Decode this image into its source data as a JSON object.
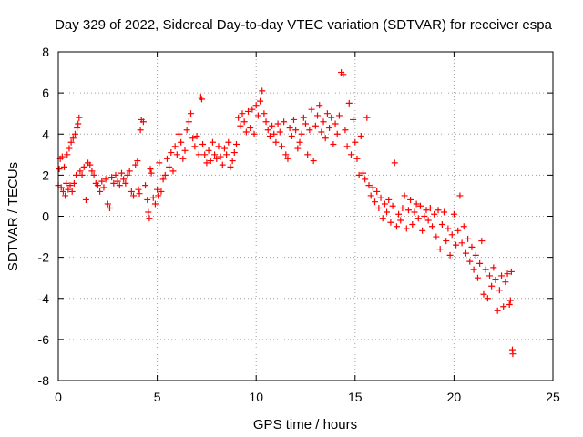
{
  "chart_data": {
    "type": "scatter",
    "title": "Day 329 of 2022, Sidereal Day-to-day VTEC variation (SDTVAR) for receiver espa",
    "xlabel": "GPS time / hours",
    "ylabel": "SDTVAR / TECUs",
    "xlim": [
      0,
      25
    ],
    "ylim": [
      -8,
      8
    ],
    "xticks": [
      "0",
      "5",
      "10",
      "15",
      "20",
      "25"
    ],
    "yticks": [
      "-8",
      "-6",
      "-4",
      "-2",
      "0",
      "2",
      "4",
      "6",
      "8"
    ],
    "grid": true,
    "marker": "plus",
    "color": "#ff0000",
    "series": [
      {
        "name": "SDTVAR",
        "points": [
          [
            0.0,
            1.5
          ],
          [
            0.05,
            2.3
          ],
          [
            0.1,
            2.8
          ],
          [
            0.15,
            1.4
          ],
          [
            0.2,
            2.9
          ],
          [
            0.25,
            1.2
          ],
          [
            0.3,
            2.4
          ],
          [
            0.35,
            1.0
          ],
          [
            0.4,
            1.6
          ],
          [
            0.45,
            3.0
          ],
          [
            0.5,
            1.3
          ],
          [
            0.55,
            3.3
          ],
          [
            0.6,
            1.5
          ],
          [
            0.65,
            3.6
          ],
          [
            0.7,
            1.2
          ],
          [
            0.75,
            3.8
          ],
          [
            0.8,
            1.6
          ],
          [
            0.85,
            4.0
          ],
          [
            0.9,
            2.0
          ],
          [
            0.95,
            4.3
          ],
          [
            1.0,
            4.5
          ],
          [
            1.05,
            4.8
          ],
          [
            1.1,
            2.2
          ],
          [
            1.2,
            2.0
          ],
          [
            1.3,
            2.4
          ],
          [
            1.4,
            0.8
          ],
          [
            1.5,
            2.6
          ],
          [
            1.6,
            2.5
          ],
          [
            1.7,
            2.2
          ],
          [
            1.8,
            2.0
          ],
          [
            1.9,
            1.6
          ],
          [
            2.0,
            1.5
          ],
          [
            2.1,
            1.2
          ],
          [
            2.2,
            1.7
          ],
          [
            2.3,
            1.4
          ],
          [
            2.4,
            1.8
          ],
          [
            2.5,
            0.6
          ],
          [
            2.6,
            0.4
          ],
          [
            2.7,
            1.9
          ],
          [
            2.8,
            1.6
          ],
          [
            2.9,
            2.0
          ],
          [
            3.0,
            1.7
          ],
          [
            3.1,
            1.5
          ],
          [
            3.2,
            2.1
          ],
          [
            3.3,
            1.8
          ],
          [
            3.4,
            1.6
          ],
          [
            3.5,
            2.0
          ],
          [
            3.6,
            2.2
          ],
          [
            3.7,
            1.2
          ],
          [
            3.8,
            1.0
          ],
          [
            3.9,
            2.5
          ],
          [
            4.0,
            2.7
          ],
          [
            4.05,
            1.3
          ],
          [
            4.1,
            1.1
          ],
          [
            4.15,
            4.2
          ],
          [
            4.2,
            4.7
          ],
          [
            4.3,
            4.6
          ],
          [
            4.4,
            1.5
          ],
          [
            4.5,
            0.8
          ],
          [
            4.55,
            0.2
          ],
          [
            4.6,
            -0.1
          ],
          [
            4.65,
            2.3
          ],
          [
            4.7,
            2.1
          ],
          [
            4.8,
            0.9
          ],
          [
            4.9,
            0.6
          ],
          [
            5.0,
            1.3
          ],
          [
            5.05,
            1.0
          ],
          [
            5.1,
            2.6
          ],
          [
            5.2,
            1.2
          ],
          [
            5.3,
            1.8
          ],
          [
            5.4,
            2.0
          ],
          [
            5.5,
            2.8
          ],
          [
            5.6,
            2.4
          ],
          [
            5.7,
            3.1
          ],
          [
            5.8,
            2.2
          ],
          [
            5.9,
            3.4
          ],
          [
            6.0,
            3.0
          ],
          [
            6.1,
            4.0
          ],
          [
            6.2,
            3.6
          ],
          [
            6.3,
            2.8
          ],
          [
            6.4,
            3.2
          ],
          [
            6.5,
            4.2
          ],
          [
            6.6,
            4.6
          ],
          [
            6.7,
            5.0
          ],
          [
            6.8,
            3.8
          ],
          [
            6.9,
            3.4
          ],
          [
            7.0,
            3.9
          ],
          [
            7.1,
            3.0
          ],
          [
            7.2,
            5.8
          ],
          [
            7.25,
            5.7
          ],
          [
            7.3,
            3.5
          ],
          [
            7.4,
            3.0
          ],
          [
            7.5,
            2.6
          ],
          [
            7.6,
            3.2
          ],
          [
            7.7,
            2.7
          ],
          [
            7.8,
            3.6
          ],
          [
            7.9,
            3.0
          ],
          [
            8.0,
            2.8
          ],
          [
            8.1,
            3.4
          ],
          [
            8.2,
            2.9
          ],
          [
            8.3,
            2.5
          ],
          [
            8.4,
            3.3
          ],
          [
            8.5,
            3.0
          ],
          [
            8.6,
            3.6
          ],
          [
            8.7,
            2.4
          ],
          [
            8.8,
            2.7
          ],
          [
            8.9,
            3.1
          ],
          [
            9.0,
            3.5
          ],
          [
            9.1,
            4.8
          ],
          [
            9.2,
            4.4
          ],
          [
            9.3,
            5.0
          ],
          [
            9.4,
            4.6
          ],
          [
            9.5,
            4.1
          ],
          [
            9.6,
            5.1
          ],
          [
            9.7,
            4.3
          ],
          [
            9.8,
            5.2
          ],
          [
            9.9,
            4.0
          ],
          [
            10.0,
            5.4
          ],
          [
            10.1,
            4.9
          ],
          [
            10.2,
            5.6
          ],
          [
            10.3,
            6.1
          ],
          [
            10.4,
            5.0
          ],
          [
            10.5,
            4.6
          ],
          [
            10.6,
            4.2
          ],
          [
            10.7,
            3.9
          ],
          [
            10.8,
            4.4
          ],
          [
            10.9,
            4.0
          ],
          [
            11.0,
            3.6
          ],
          [
            11.1,
            4.5
          ],
          [
            11.2,
            4.1
          ],
          [
            11.3,
            3.4
          ],
          [
            11.4,
            4.6
          ],
          [
            11.5,
            3.0
          ],
          [
            11.6,
            2.8
          ],
          [
            11.7,
            4.3
          ],
          [
            11.8,
            3.9
          ],
          [
            11.9,
            4.7
          ],
          [
            12.0,
            4.2
          ],
          [
            12.1,
            3.3
          ],
          [
            12.2,
            3.6
          ],
          [
            12.3,
            4.0
          ],
          [
            12.4,
            4.8
          ],
          [
            12.5,
            4.5
          ],
          [
            12.6,
            3.0
          ],
          [
            12.7,
            4.2
          ],
          [
            12.8,
            5.2
          ],
          [
            12.9,
            2.7
          ],
          [
            13.0,
            4.4
          ],
          [
            13.1,
            4.9
          ],
          [
            13.2,
            5.4
          ],
          [
            13.3,
            4.1
          ],
          [
            13.4,
            4.6
          ],
          [
            13.5,
            3.8
          ],
          [
            13.6,
            5.0
          ],
          [
            13.7,
            4.3
          ],
          [
            13.8,
            4.8
          ],
          [
            13.9,
            3.5
          ],
          [
            14.0,
            4.5
          ],
          [
            14.1,
            4.0
          ],
          [
            14.2,
            4.9
          ],
          [
            14.3,
            7.0
          ],
          [
            14.4,
            6.9
          ],
          [
            14.5,
            4.2
          ],
          [
            14.6,
            3.4
          ],
          [
            14.7,
            5.5
          ],
          [
            14.8,
            3.0
          ],
          [
            14.9,
            4.7
          ],
          [
            15.0,
            3.6
          ],
          [
            15.1,
            2.8
          ],
          [
            15.2,
            2.0
          ],
          [
            15.3,
            3.9
          ],
          [
            15.4,
            2.1
          ],
          [
            15.5,
            1.8
          ],
          [
            15.6,
            4.8
          ],
          [
            15.7,
            1.5
          ],
          [
            15.8,
            1.0
          ],
          [
            15.9,
            1.4
          ],
          [
            16.0,
            0.7
          ],
          [
            16.1,
            1.2
          ],
          [
            16.2,
            0.4
          ],
          [
            16.3,
            0.9
          ],
          [
            16.4,
            -0.1
          ],
          [
            16.5,
            0.6
          ],
          [
            16.6,
            0.2
          ],
          [
            16.7,
            0.8
          ],
          [
            16.8,
            -0.3
          ],
          [
            16.9,
            0.5
          ],
          [
            17.0,
            2.6
          ],
          [
            17.1,
            -0.5
          ],
          [
            17.2,
            0.1
          ],
          [
            17.3,
            -0.2
          ],
          [
            17.4,
            0.4
          ],
          [
            17.5,
            1.0
          ],
          [
            17.6,
            -0.6
          ],
          [
            17.7,
            0.3
          ],
          [
            17.8,
            0.8
          ],
          [
            17.9,
            -0.4
          ],
          [
            18.0,
            0.2
          ],
          [
            18.1,
            0.6
          ],
          [
            18.2,
            -0.1
          ],
          [
            18.3,
            0.5
          ],
          [
            18.4,
            -0.7
          ],
          [
            18.5,
            0.0
          ],
          [
            18.6,
            0.3
          ],
          [
            18.7,
            -0.2
          ],
          [
            18.8,
            0.4
          ],
          [
            18.9,
            -0.5
          ],
          [
            19.0,
            0.1
          ],
          [
            19.1,
            -1.0
          ],
          [
            19.2,
            0.3
          ],
          [
            19.3,
            -1.6
          ],
          [
            19.4,
            -0.4
          ],
          [
            19.5,
            0.2
          ],
          [
            19.6,
            -1.2
          ],
          [
            19.7,
            -0.6
          ],
          [
            19.8,
            -1.9
          ],
          [
            19.9,
            -0.9
          ],
          [
            20.0,
            0.1
          ],
          [
            20.1,
            -1.4
          ],
          [
            20.2,
            -0.7
          ],
          [
            20.3,
            1.0
          ],
          [
            20.4,
            -1.3
          ],
          [
            20.5,
            -0.5
          ],
          [
            20.6,
            -1.8
          ],
          [
            20.7,
            -1.1
          ],
          [
            20.8,
            -2.2
          ],
          [
            20.9,
            -1.5
          ],
          [
            21.0,
            -2.6
          ],
          [
            21.1,
            -1.9
          ],
          [
            21.2,
            -3.0
          ],
          [
            21.3,
            -2.3
          ],
          [
            21.4,
            -1.2
          ],
          [
            21.5,
            -3.8
          ],
          [
            21.6,
            -2.6
          ],
          [
            21.7,
            -4.0
          ],
          [
            21.8,
            -2.9
          ],
          [
            21.9,
            -3.4
          ],
          [
            22.0,
            -2.5
          ],
          [
            22.1,
            -3.1
          ],
          [
            22.2,
            -4.6
          ],
          [
            22.3,
            -3.6
          ],
          [
            22.4,
            -2.9
          ],
          [
            22.5,
            -4.4
          ],
          [
            22.6,
            -3.2
          ],
          [
            22.7,
            -2.8
          ],
          [
            22.8,
            -4.3
          ],
          [
            22.85,
            -4.1
          ],
          [
            22.9,
            -2.7
          ],
          [
            22.95,
            -6.5
          ],
          [
            22.97,
            -6.7
          ]
        ]
      }
    ]
  }
}
